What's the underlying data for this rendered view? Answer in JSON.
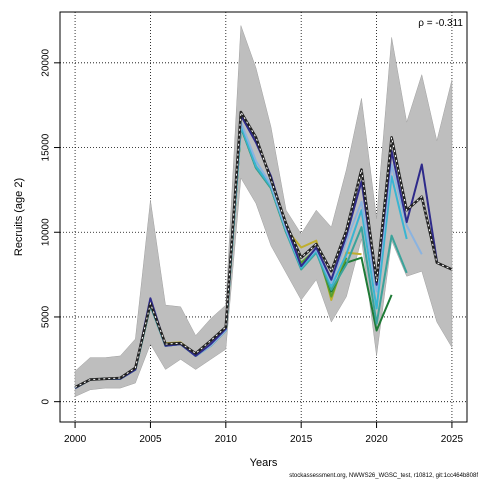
{
  "chart_data": {
    "type": "line",
    "title": "",
    "xlabel": "Years",
    "ylabel": "Recruits (age 2)",
    "xlim": [
      1999,
      2026
    ],
    "ylim": [
      -1200,
      23000
    ],
    "xticks": [
      2000,
      2005,
      2010,
      2015,
      2020,
      2025
    ],
    "yticks": [
      0,
      5000,
      10000,
      15000,
      20000
    ],
    "grid": true,
    "annotation": "ρ = -0.311",
    "footer": "stockassessment.org, NWWS26_WGSC_test, r10812, git:1cc464b808f",
    "colors": {
      "band": "#bebebe",
      "band_edge": "#a0a0a0",
      "base": "#222222",
      "base_dash": "#ffffff"
    },
    "ci_band": {
      "x": [
        2000,
        2001,
        2002,
        2003,
        2004,
        2005,
        2006,
        2007,
        2008,
        2009,
        2010,
        2011,
        2012,
        2013,
        2014,
        2015,
        2016,
        2017,
        2018,
        2019,
        2020,
        2021,
        2022,
        2023,
        2024,
        2025
      ],
      "upper": [
        1800,
        2600,
        2600,
        2700,
        3700,
        11900,
        5700,
        5600,
        3900,
        4900,
        5700,
        22200,
        19700,
        16200,
        11300,
        9900,
        11300,
        10300,
        13700,
        17900,
        10800,
        21500,
        16500,
        19300,
        15400,
        19000
      ],
      "lower": [
        300,
        700,
        800,
        800,
        1100,
        3400,
        1900,
        2500,
        1900,
        2500,
        3100,
        13200,
        11700,
        9200,
        7600,
        6000,
        7200,
        4700,
        6200,
        9600,
        2700,
        9500,
        7400,
        7700,
        4700,
        3200
      ]
    },
    "series": [
      {
        "name": "",
        "color": "#bfae2e",
        "x": [
          2000,
          2001,
          2002,
          2003,
          2004,
          2005,
          2006,
          2007,
          2008,
          2009,
          2010,
          2011,
          2012,
          2013,
          2014,
          2015,
          2016,
          2017,
          2018,
          2019
        ],
        "values": [
          800,
          1300,
          1350,
          1350,
          1900,
          5700,
          3450,
          3500,
          2800,
          3300,
          4200,
          16200,
          13900,
          12700,
          10200,
          9100,
          9500,
          6000,
          8800,
          8700
        ]
      },
      {
        "name": "",
        "color": "#5a9e2c",
        "x": [
          2000,
          2001,
          2002,
          2003,
          2004,
          2005,
          2006,
          2007,
          2008,
          2009,
          2010,
          2011,
          2012,
          2013,
          2014,
          2015,
          2016,
          2017,
          2018
        ],
        "values": [
          800,
          1300,
          1350,
          1350,
          1900,
          5700,
          3300,
          3400,
          2700,
          3300,
          4200,
          16200,
          13800,
          12600,
          10000,
          8200,
          9000,
          6200,
          8500
        ]
      },
      {
        "name": "",
        "color": "#1e7a35",
        "x": [
          2000,
          2001,
          2002,
          2003,
          2004,
          2005,
          2006,
          2007,
          2008,
          2009,
          2010,
          2011,
          2012,
          2013,
          2014,
          2015,
          2016,
          2017,
          2018,
          2019,
          2020,
          2021
        ],
        "values": [
          800,
          1300,
          1350,
          1350,
          1900,
          5700,
          3300,
          3400,
          2700,
          3300,
          4200,
          16200,
          13800,
          12600,
          10000,
          8000,
          8900,
          6500,
          8200,
          8500,
          4200,
          6300
        ]
      },
      {
        "name": "",
        "color": "#3aa39a",
        "x": [
          2000,
          2001,
          2002,
          2003,
          2004,
          2005,
          2006,
          2007,
          2008,
          2009,
          2010,
          2011,
          2012,
          2013,
          2014,
          2015,
          2016,
          2017,
          2018,
          2019,
          2020,
          2021,
          2022
        ],
        "values": [
          800,
          1300,
          1350,
          1350,
          1900,
          5700,
          3300,
          3400,
          2700,
          3300,
          4200,
          16200,
          13800,
          12600,
          10000,
          7800,
          8800,
          6600,
          8100,
          10300,
          4600,
          9800,
          7600
        ]
      },
      {
        "name": "",
        "color": "#39b5d2",
        "x": [
          2000,
          2001,
          2002,
          2003,
          2004,
          2005,
          2006,
          2007,
          2008,
          2009,
          2010,
          2011,
          2012,
          2013,
          2014,
          2015,
          2016,
          2017,
          2018,
          2019,
          2020,
          2021,
          2022
        ],
        "values": [
          800,
          1300,
          1350,
          1350,
          1900,
          5700,
          3300,
          3400,
          2700,
          3300,
          4200,
          16300,
          13900,
          12700,
          10100,
          7900,
          8900,
          6800,
          8700,
          11300,
          5500,
          13300,
          9600
        ]
      },
      {
        "name": "",
        "color": "#8ab3e0",
        "x": [
          2000,
          2001,
          2002,
          2003,
          2004,
          2005,
          2006,
          2007,
          2008,
          2009,
          2010,
          2011,
          2012,
          2013,
          2014,
          2015,
          2016,
          2017,
          2018,
          2019,
          2020,
          2021,
          2022,
          2023
        ],
        "values": [
          800,
          1300,
          1350,
          1350,
          1900,
          5800,
          3300,
          3400,
          2700,
          3300,
          4200,
          16500,
          14200,
          12800,
          10200,
          8000,
          9000,
          7000,
          9500,
          11800,
          6500,
          14000,
          10400,
          8700
        ]
      },
      {
        "name": "",
        "color": "#2e2a8a",
        "x": [
          2000,
          2001,
          2002,
          2003,
          2004,
          2005,
          2006,
          2007,
          2008,
          2009,
          2010,
          2011,
          2012,
          2013,
          2014,
          2015,
          2016,
          2017,
          2018,
          2019,
          2020,
          2021,
          2022,
          2023,
          2024
        ],
        "values": [
          800,
          1300,
          1350,
          1350,
          1900,
          6100,
          3300,
          3400,
          2700,
          3400,
          4300,
          16900,
          15300,
          13300,
          10400,
          8000,
          9100,
          7200,
          9800,
          13000,
          6900,
          14800,
          10600,
          14000,
          8300
        ]
      },
      {
        "name": "",
        "color": "#222222",
        "dashed": true,
        "x": [
          2000,
          2001,
          2002,
          2003,
          2004,
          2005,
          2006,
          2007,
          2008,
          2009,
          2010,
          2011,
          2012,
          2013,
          2014,
          2015,
          2016,
          2017,
          2018,
          2019,
          2020,
          2021,
          2022,
          2023,
          2024,
          2025
        ],
        "values": [
          850,
          1300,
          1350,
          1400,
          2000,
          5800,
          3400,
          3450,
          2850,
          3600,
          4400,
          17100,
          15600,
          13100,
          10500,
          8500,
          9300,
          7700,
          10100,
          13700,
          7100,
          15600,
          11300,
          12100,
          8200,
          7800
        ]
      }
    ]
  }
}
